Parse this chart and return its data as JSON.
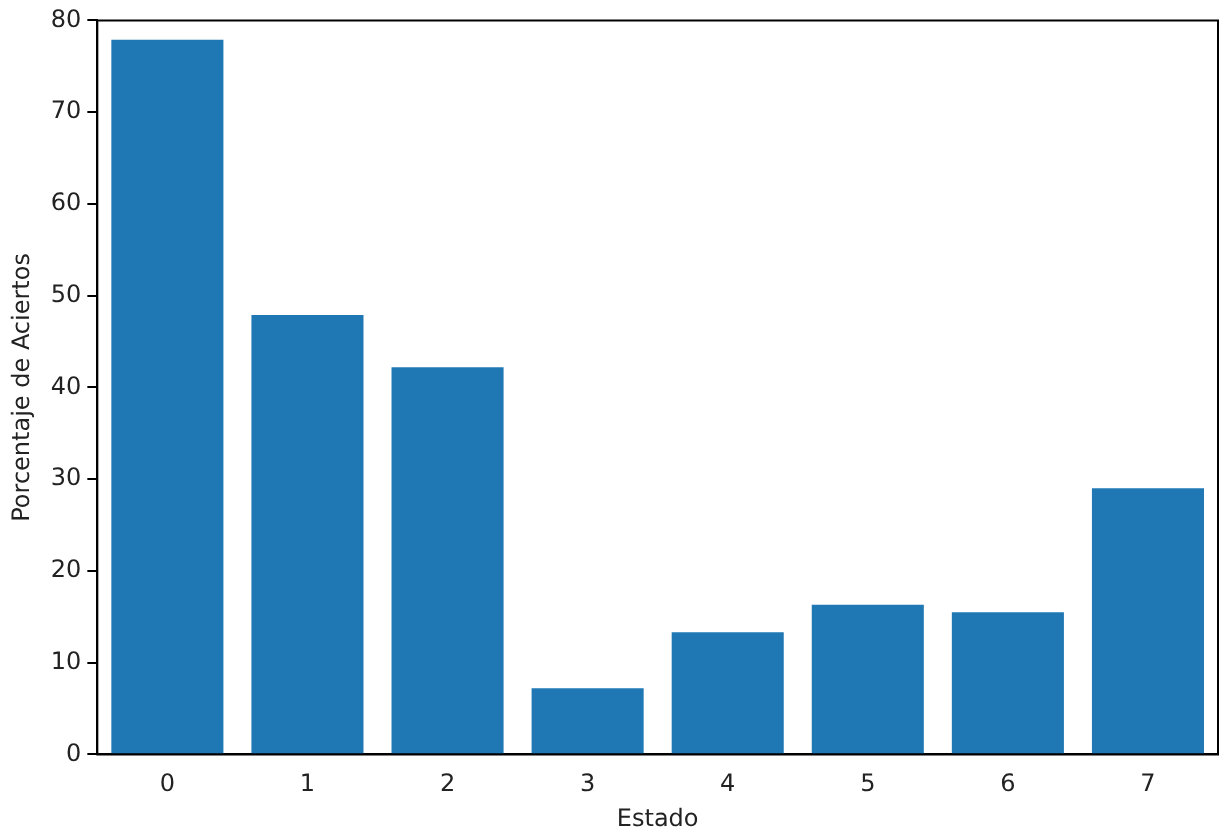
{
  "chart_data": {
    "type": "bar",
    "xlabel": "Estado",
    "ylabel": "Porcentaje de Aciertos",
    "categories": [
      "0",
      "1",
      "2",
      "3",
      "4",
      "5",
      "6",
      "7"
    ],
    "values": [
      77.9,
      47.9,
      42.2,
      7.2,
      13.3,
      16.3,
      15.5,
      29.0
    ],
    "color": "#1f77b4",
    "ylim": [
      0,
      80
    ],
    "yticks": [
      0,
      10,
      20,
      30,
      40,
      50,
      60,
      70,
      80
    ],
    "grid": false,
    "legend": false
  }
}
